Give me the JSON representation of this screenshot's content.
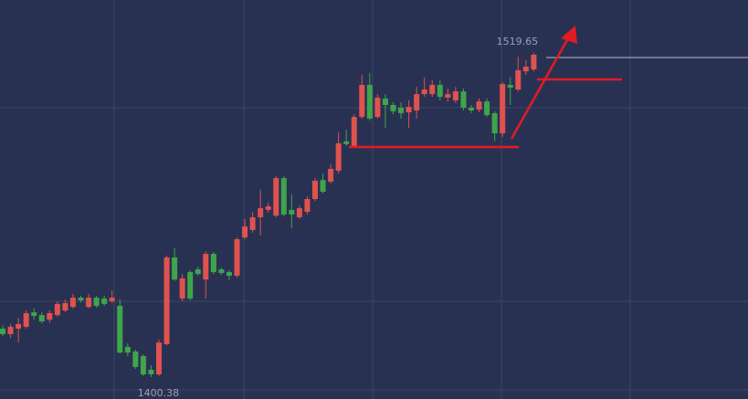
{
  "chart_data": {
    "type": "candlestick",
    "high_marker": 1519.65,
    "low_marker": 1400.38,
    "up_color": "#e0524f",
    "down_color": "#3fa54a",
    "open": [
      1418.2,
      1416.2,
      1418.2,
      1418.9,
      1424.2,
      1423.2,
      1421.5,
      1423.2,
      1424.9,
      1426.2,
      1429.6,
      1426.2,
      1429.6,
      1429.3,
      1428.3,
      1426.6,
      1411.5,
      1409.8,
      1408.1,
      1403.1,
      1401.4,
      1412.5,
      1444.4,
      1429.3,
      1439.0,
      1440.0,
      1436.3,
      1445.7,
      1440.0,
      1439.0,
      1437.7,
      1451.8,
      1454.5,
      1459.2,
      1461.9,
      1459.8,
      1473.6,
      1461.9,
      1459.2,
      1461.2,
      1465.9,
      1472.9,
      1472.3,
      1476.3,
      1487.1,
      1485.4,
      1496.1,
      1507.9,
      1496.1,
      1502.9,
      1500.5,
      1499.5,
      1497.8,
      1498.5,
      1504.5,
      1504.5,
      1507.9,
      1503.2,
      1502.2,
      1505.5,
      1499.5,
      1498.8,
      1501.8,
      1497.5,
      1490.1,
      1507.9,
      1506.2,
      1512.9,
      1513.6
    ],
    "high": [
      1419.5,
      1419.9,
      1422.2,
      1424.9,
      1425.6,
      1424.2,
      1424.9,
      1428.3,
      1428.9,
      1431.0,
      1430.3,
      1431.0,
      1430.3,
      1430.3,
      1432.3,
      1428.9,
      1412.8,
      1410.5,
      1408.8,
      1404.7,
      1414.2,
      1445.1,
      1447.8,
      1438.3,
      1439.7,
      1441.0,
      1446.7,
      1446.4,
      1440.7,
      1439.7,
      1451.8,
      1458.5,
      1461.2,
      1469.3,
      1464.6,
      1474.3,
      1474.3,
      1467.6,
      1463.5,
      1466.9,
      1473.6,
      1475.3,
      1478.7,
      1490.4,
      1491.4,
      1497.1,
      1511.6,
      1512.3,
      1504.5,
      1504.5,
      1501.5,
      1501.5,
      1502.2,
      1507.2,
      1510.6,
      1509.6,
      1509.6,
      1506.6,
      1507.2,
      1506.6,
      1500.5,
      1502.9,
      1502.9,
      1498.2,
      1508.9,
      1510.6,
      1518.3,
      1517.0,
      1519.65
    ],
    "low": [
      1415.5,
      1414.8,
      1413.1,
      1418.2,
      1421.5,
      1420.2,
      1420.5,
      1422.6,
      1424.2,
      1425.6,
      1427.9,
      1425.6,
      1425.9,
      1426.6,
      1427.6,
      1409.1,
      1408.1,
      1403.4,
      1400.7,
      1400.38,
      1400.7,
      1412.1,
      1435.7,
      1428.3,
      1428.6,
      1437.7,
      1429.3,
      1438.3,
      1438.0,
      1436.0,
      1437.0,
      1451.1,
      1453.5,
      1452.5,
      1460.9,
      1459.2,
      1459.5,
      1455.1,
      1458.5,
      1460.2,
      1465.2,
      1467.9,
      1471.6,
      1475.3,
      1485.4,
      1484.7,
      1495.5,
      1494.8,
      1495.5,
      1492.1,
      1497.1,
      1495.5,
      1492.1,
      1495.5,
      1503.5,
      1503.5,
      1502.2,
      1501.8,
      1501.2,
      1498.5,
      1497.5,
      1497.8,
      1496.1,
      1487.1,
      1488.7,
      1500.5,
      1505.5,
      1511.6,
      1512.9
    ],
    "close": [
      1416.2,
      1418.9,
      1419.9,
      1423.9,
      1422.9,
      1420.9,
      1423.9,
      1427.3,
      1427.6,
      1429.6,
      1428.6,
      1429.6,
      1426.6,
      1427.3,
      1429.6,
      1409.4,
      1409.4,
      1404.1,
      1401.4,
      1401.4,
      1413.1,
      1444.4,
      1436.3,
      1436.7,
      1429.3,
      1438.3,
      1445.7,
      1439.0,
      1438.7,
      1437.7,
      1451.1,
      1455.8,
      1459.2,
      1462.5,
      1463.2,
      1473.6,
      1460.2,
      1460.2,
      1462.5,
      1465.9,
      1472.6,
      1468.6,
      1477.0,
      1486.4,
      1486.1,
      1496.1,
      1507.9,
      1495.5,
      1503.2,
      1500.5,
      1498.2,
      1497.5,
      1499.8,
      1504.5,
      1506.2,
      1507.9,
      1503.5,
      1504.5,
      1505.5,
      1499.5,
      1498.5,
      1501.8,
      1496.8,
      1490.1,
      1508.2,
      1506.9,
      1513.3,
      1514.6,
      1519.0
    ]
  }
}
